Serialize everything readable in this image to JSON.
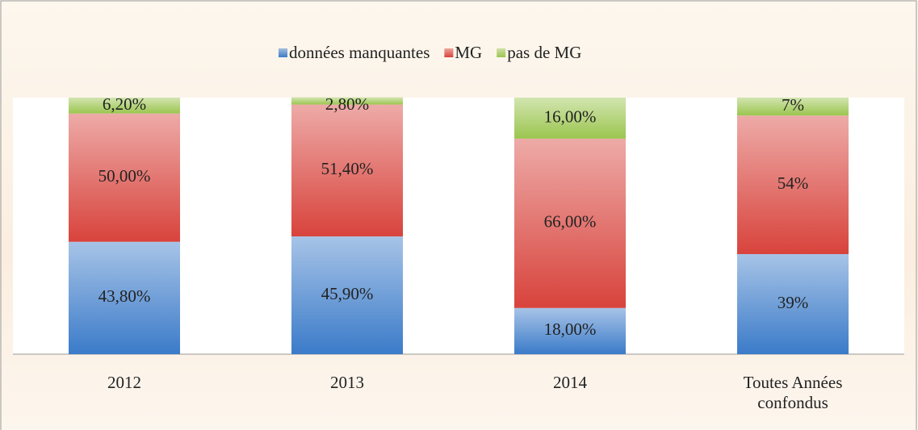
{
  "chart_data": {
    "type": "stacked_bar",
    "categories": [
      "2012",
      "2013",
      "2014",
      "Toutes Années confondus"
    ],
    "series": [
      {
        "name": "données manquantes",
        "color": "#3b7bc9",
        "values": [
          43.8,
          45.9,
          18,
          39
        ],
        "value_labels": [
          "43,80%",
          "45,90%",
          "18,00%",
          "39%"
        ]
      },
      {
        "name": "MG",
        "color": "#d8433c",
        "values": [
          50,
          51.4,
          66,
          54
        ],
        "value_labels": [
          "50,00%",
          "51,40%",
          "66,00%",
          "54%"
        ]
      },
      {
        "name": "pas de MG",
        "color": "#9bc54f",
        "values": [
          6.2,
          2.8,
          16,
          7
        ],
        "value_labels": [
          "6,20%",
          "2,80%",
          "16,00%",
          "7%"
        ]
      }
    ],
    "ylim": [
      0,
      100
    ],
    "legend": "top"
  }
}
